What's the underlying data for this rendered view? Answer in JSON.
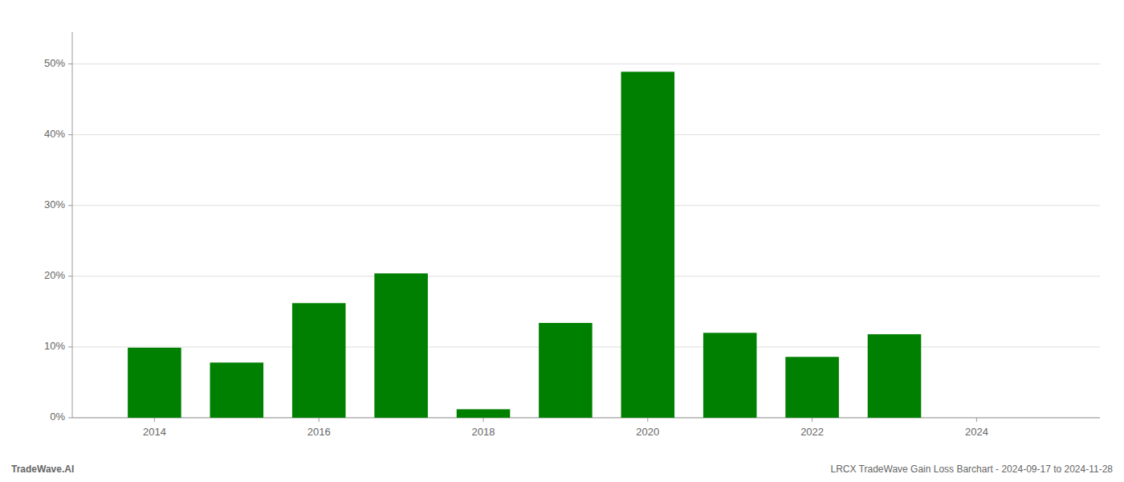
{
  "chart_data": {
    "type": "bar",
    "x": [
      2014,
      2015,
      2016,
      2017,
      2018,
      2019,
      2020,
      2021,
      2022,
      2023
    ],
    "values": [
      0.099,
      0.078,
      0.162,
      0.204,
      0.012,
      0.134,
      0.489,
      0.12,
      0.086,
      0.118
    ],
    "color": "#008000",
    "xlim": [
      2013.0,
      2025.5
    ],
    "xticks": [
      2014,
      2016,
      2018,
      2020,
      2022,
      2024
    ],
    "ylim": [
      0.0,
      0.545
    ],
    "yticks": [
      {
        "value": 0.0,
        "label": "0%"
      },
      {
        "value": 0.1,
        "label": "10%"
      },
      {
        "value": 0.2,
        "label": "20%"
      },
      {
        "value": 0.3,
        "label": "30%"
      },
      {
        "value": 0.4,
        "label": "40%"
      },
      {
        "value": 0.5,
        "label": "50%"
      }
    ],
    "grid": true,
    "annotations": [
      "TradeWave.AI",
      "LRCX TradeWave Gain Loss Barchart - 2024-09-17 to 2024-11-28"
    ]
  }
}
